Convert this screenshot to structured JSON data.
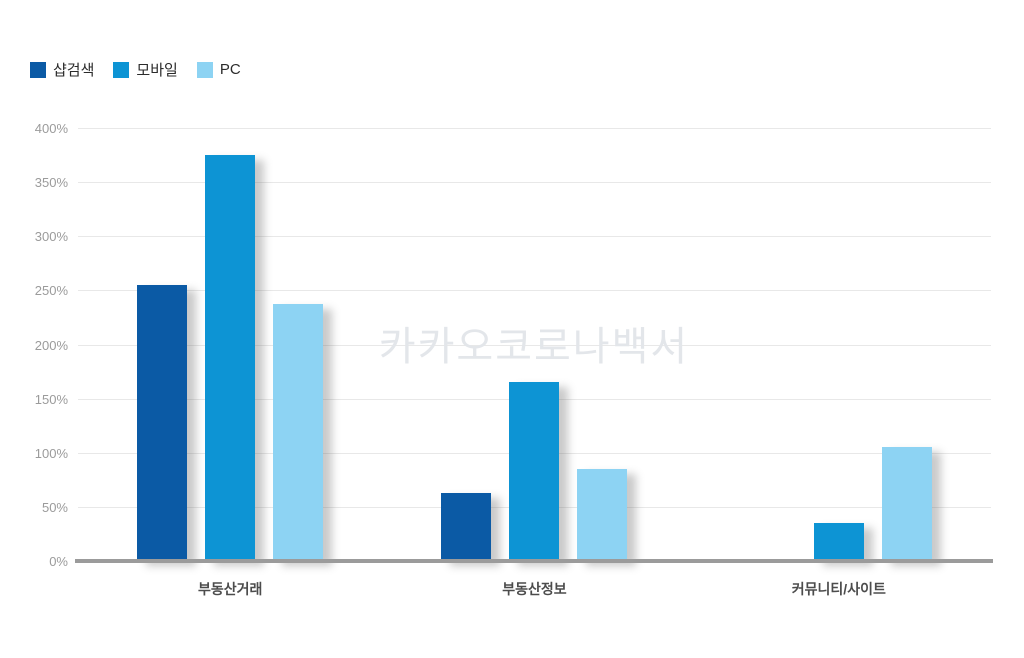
{
  "colors": {
    "series": [
      "#0b5aa5",
      "#0d94d4",
      "#8dd3f3"
    ],
    "gridline": "#e8e8e8",
    "axis_line": "#9b9b9b",
    "tick_text": "#9b9b9b",
    "category_text": "#4c4c4c",
    "watermark_text": "#e3e6ea"
  },
  "legend": [
    {
      "label": "샵검색",
      "color": "#0b5aa5"
    },
    {
      "label": "모바일",
      "color": "#0d94d4"
    },
    {
      "label": "PC",
      "color": "#8dd3f3"
    }
  ],
  "watermark": "카카오코로나백서",
  "chart_data": {
    "type": "bar",
    "title": "",
    "xlabel": "",
    "ylabel": "",
    "categories": [
      "부동산거래",
      "부동산정보",
      "커뮤니티/사이트"
    ],
    "series": [
      {
        "name": "샵검색",
        "values": [
          255,
          63,
          0
        ]
      },
      {
        "name": "모바일",
        "values": [
          375,
          165,
          35
        ]
      },
      {
        "name": "PC",
        "values": [
          237,
          85,
          105
        ]
      }
    ],
    "ylim": [
      0,
      400
    ],
    "ytick_step": 50,
    "ytick_suffix": "%",
    "grid": true,
    "legend_position": "top-left"
  }
}
